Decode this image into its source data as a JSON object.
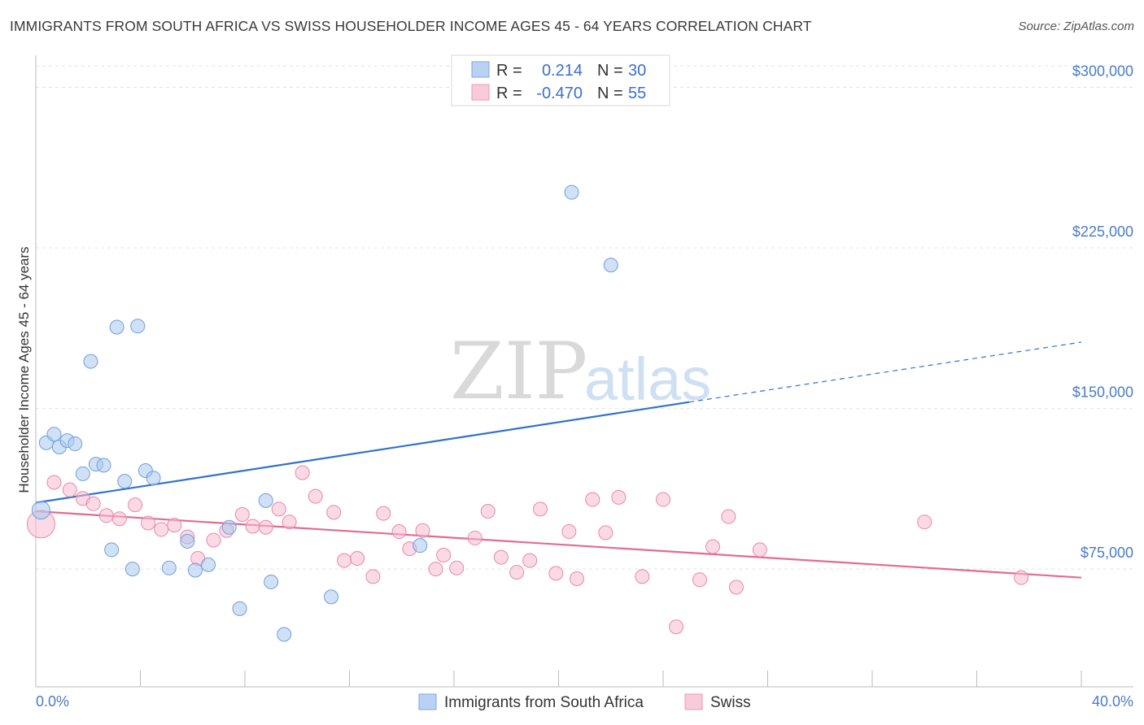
{
  "title": "IMMIGRANTS FROM SOUTH AFRICA VS SWISS HOUSEHOLDER INCOME AGES 45 - 64 YEARS CORRELATION CHART",
  "source": "Source: ZipAtlas.com",
  "watermark": {
    "zip": "ZIP",
    "atlas": "atlas"
  },
  "legend": {
    "r_label": "R =",
    "n_label": "N =",
    "rows": [
      {
        "r": "0.214",
        "n": "30"
      },
      {
        "r": "-0.470",
        "n": "55"
      }
    ]
  },
  "chart_data": {
    "type": "scatter",
    "title": "IMMIGRANTS FROM SOUTH AFRICA VS SWISS HOUSEHOLDER INCOME AGES 45 - 64 YEARS CORRELATION CHART",
    "xlabel": "",
    "ylabel": "Householder Income Ages 45 - 64 years",
    "xlim": [
      0,
      40
    ],
    "ylim": [
      20000,
      315000
    ],
    "x_tick_labels": [
      "0.0%",
      "40.0%"
    ],
    "y_ticks": [
      75000,
      150000,
      225000,
      300000
    ],
    "y_tick_labels": [
      "$75,000",
      "$150,000",
      "$225,000",
      "$300,000"
    ],
    "grid": true,
    "legend_position": "top-center",
    "series": [
      {
        "name": "Immigrants from South Africa",
        "color": "#a9c8ee",
        "edge": "#6f9fdc",
        "trend_color": "#2f72d0",
        "r": 0.214,
        "n": 30,
        "trend": {
          "x0": 0,
          "y0": 106000,
          "x1": 25,
          "y1": 153000,
          "dash_to_x": 40,
          "dash_to_y": 181000
        },
        "points": [
          [
            0.2,
            102500
          ],
          [
            0.4,
            134000
          ],
          [
            0.7,
            138000
          ],
          [
            0.9,
            132000
          ],
          [
            1.2,
            135000
          ],
          [
            1.5,
            133500
          ],
          [
            1.8,
            119500
          ],
          [
            2.1,
            172000
          ],
          [
            2.3,
            124000
          ],
          [
            2.6,
            123500
          ],
          [
            2.9,
            84000
          ],
          [
            3.1,
            188000
          ],
          [
            3.4,
            116000
          ],
          [
            3.7,
            75000
          ],
          [
            3.9,
            188500
          ],
          [
            4.2,
            121000
          ],
          [
            4.5,
            117500
          ],
          [
            5.1,
            75500
          ],
          [
            5.8,
            88000
          ],
          [
            6.1,
            74500
          ],
          [
            6.6,
            77000
          ],
          [
            7.4,
            94500
          ],
          [
            7.8,
            56500
          ],
          [
            8.8,
            107000
          ],
          [
            9.0,
            69000
          ],
          [
            9.5,
            44500
          ],
          [
            11.3,
            62000
          ],
          [
            14.7,
            86000
          ],
          [
            20.5,
            251000
          ],
          [
            22.0,
            217000
          ]
        ]
      },
      {
        "name": "Swiss",
        "color": "#f7bcd0",
        "edge": "#e888a8",
        "trend_color": "#e26b93",
        "r": -0.47,
        "n": 55,
        "trend": {
          "x0": 0,
          "y0": 102000,
          "x1": 40,
          "y1": 71000
        },
        "points": [
          [
            0.2,
            96000
          ],
          [
            0.7,
            115500
          ],
          [
            1.3,
            112000
          ],
          [
            1.8,
            108000
          ],
          [
            2.2,
            105500
          ],
          [
            2.7,
            100000
          ],
          [
            3.2,
            98500
          ],
          [
            3.8,
            105000
          ],
          [
            4.3,
            96500
          ],
          [
            4.8,
            93500
          ],
          [
            5.3,
            95500
          ],
          [
            5.8,
            90000
          ],
          [
            6.2,
            80000
          ],
          [
            6.8,
            88500
          ],
          [
            7.3,
            93000
          ],
          [
            7.9,
            100500
          ],
          [
            8.3,
            95000
          ],
          [
            8.8,
            94500
          ],
          [
            9.3,
            103000
          ],
          [
            9.7,
            97000
          ],
          [
            10.2,
            120000
          ],
          [
            10.7,
            109000
          ],
          [
            11.4,
            101500
          ],
          [
            11.8,
            79000
          ],
          [
            12.3,
            80000
          ],
          [
            12.9,
            71500
          ],
          [
            13.3,
            101000
          ],
          [
            13.9,
            92500
          ],
          [
            14.3,
            84500
          ],
          [
            14.8,
            93000
          ],
          [
            15.3,
            75000
          ],
          [
            15.6,
            81500
          ],
          [
            16.1,
            75500
          ],
          [
            16.8,
            89500
          ],
          [
            17.3,
            102000
          ],
          [
            17.8,
            80500
          ],
          [
            18.4,
            73500
          ],
          [
            18.9,
            79000
          ],
          [
            19.3,
            103000
          ],
          [
            19.9,
            73000
          ],
          [
            20.4,
            92500
          ],
          [
            20.7,
            70500
          ],
          [
            21.3,
            107500
          ],
          [
            21.8,
            92000
          ],
          [
            22.3,
            108500
          ],
          [
            23.2,
            71500
          ],
          [
            24.0,
            107500
          ],
          [
            24.5,
            48000
          ],
          [
            25.4,
            70000
          ],
          [
            25.9,
            85500
          ],
          [
            26.5,
            99500
          ],
          [
            26.8,
            66500
          ],
          [
            27.7,
            84000
          ],
          [
            34.0,
            97000
          ],
          [
            37.7,
            71000
          ]
        ]
      }
    ]
  }
}
